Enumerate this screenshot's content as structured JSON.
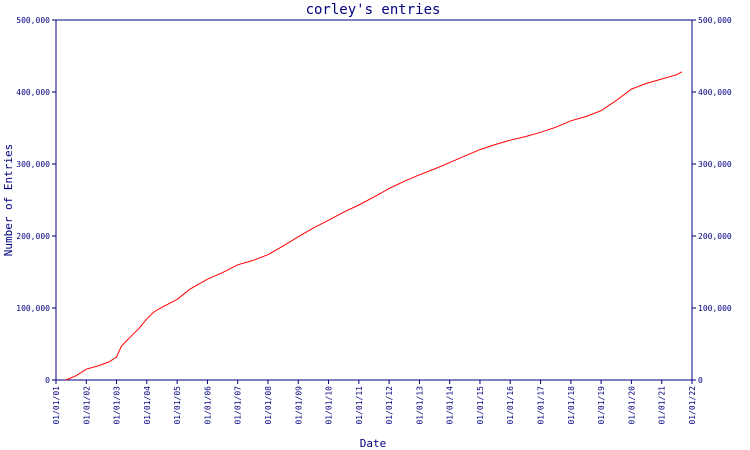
{
  "chart_data": {
    "type": "line",
    "title": "corley's entries",
    "xlabel": "Date",
    "ylabel": "Number of Entries",
    "x_ticks": [
      "01/01/01",
      "01/01/02",
      "01/01/03",
      "01/01/04",
      "01/01/05",
      "01/01/06",
      "01/01/07",
      "01/01/08",
      "01/01/09",
      "01/01/10",
      "01/01/11",
      "01/01/12",
      "01/01/13",
      "01/01/14",
      "01/01/15",
      "01/01/16",
      "01/01/17",
      "01/01/18",
      "01/01/19",
      "01/01/20",
      "01/01/21",
      "01/01/22"
    ],
    "xlim": [
      "2001-01-01",
      "2022-01-01"
    ],
    "ylim": [
      0,
      500000
    ],
    "y_ticks": [
      0,
      100000,
      200000,
      300000,
      400000,
      500000
    ],
    "y_tick_labels": [
      "0",
      "100,000",
      "200,000",
      "300,000",
      "400,000",
      "500,000"
    ],
    "grid": false,
    "colors": {
      "axis": "#000080",
      "line": "#ff0000",
      "background": "#ffffff"
    },
    "series": [
      {
        "x": [
          "2001-05-01",
          "2001-09-01",
          "2002-01-01",
          "2002-06-01",
          "2002-10-01",
          "2003-01-01",
          "2003-03-01",
          "2003-06-01",
          "2003-10-01",
          "2004-01-01",
          "2004-04-01",
          "2004-07-01",
          "2005-01-01",
          "2005-06-01",
          "2006-01-01",
          "2006-07-01",
          "2007-01-01",
          "2007-07-01",
          "2008-01-01",
          "2008-07-01",
          "2009-01-01",
          "2009-07-01",
          "2010-01-01",
          "2010-07-01",
          "2011-01-01",
          "2011-07-01",
          "2012-01-01",
          "2012-07-01",
          "2013-01-01",
          "2013-07-01",
          "2014-01-01",
          "2014-07-01",
          "2015-01-01",
          "2015-07-01",
          "2016-01-01",
          "2016-07-01",
          "2017-01-01",
          "2017-07-01",
          "2018-01-01",
          "2018-07-01",
          "2019-01-01",
          "2019-07-01",
          "2020-01-01",
          "2020-07-01",
          "2021-01-01",
          "2021-07-01",
          "2021-09-01"
        ],
        "values": [
          0,
          6000,
          15000,
          20000,
          25000,
          32000,
          47000,
          58000,
          72000,
          85000,
          95000,
          101000,
          112000,
          126000,
          140000,
          149000,
          160000,
          166000,
          174000,
          186000,
          199000,
          211000,
          222000,
          233000,
          243000,
          254000,
          266000,
          276000,
          285000,
          293000,
          302000,
          311000,
          320000,
          327000,
          333000,
          338000,
          344000,
          351000,
          360000,
          366000,
          374000,
          388000,
          404000,
          412000,
          418000,
          424000,
          428000
        ]
      }
    ]
  }
}
